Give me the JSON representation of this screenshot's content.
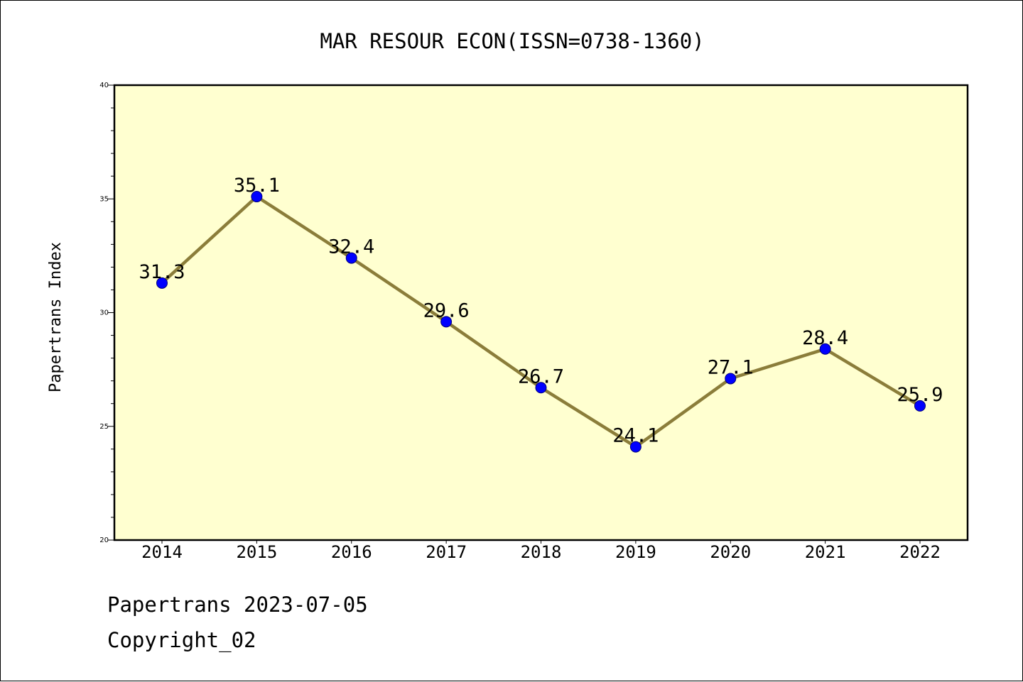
{
  "chart_data": {
    "type": "line",
    "title": "MAR RESOUR ECON(ISSN=0738-1360)",
    "xlabel": "",
    "ylabel": "Papertrans Index",
    "categories": [
      "2014",
      "2015",
      "2016",
      "2017",
      "2018",
      "2019",
      "2020",
      "2021",
      "2022"
    ],
    "series": [
      {
        "values": [
          31.3,
          35.1,
          32.4,
          29.6,
          26.7,
          24.1,
          27.1,
          28.4,
          25.9
        ],
        "labels": [
          "31.3",
          "35.1",
          "32.4",
          "29.6",
          "26.7",
          "24.1",
          "27.1",
          "28.4",
          "25.9"
        ]
      }
    ],
    "ylim": [
      20,
      40
    ],
    "yticks": [
      20,
      25,
      30,
      35,
      40
    ],
    "ytick_labels": [
      "20",
      "25",
      "30",
      "35",
      "40"
    ],
    "grid": false,
    "colors": {
      "plot_background": "#FFFFD0",
      "line": "#8B7D3A",
      "marker": "#0000FF"
    }
  },
  "footer": {
    "source": "Papertrans 2023-07-05",
    "copyright": "Copyright_02"
  }
}
